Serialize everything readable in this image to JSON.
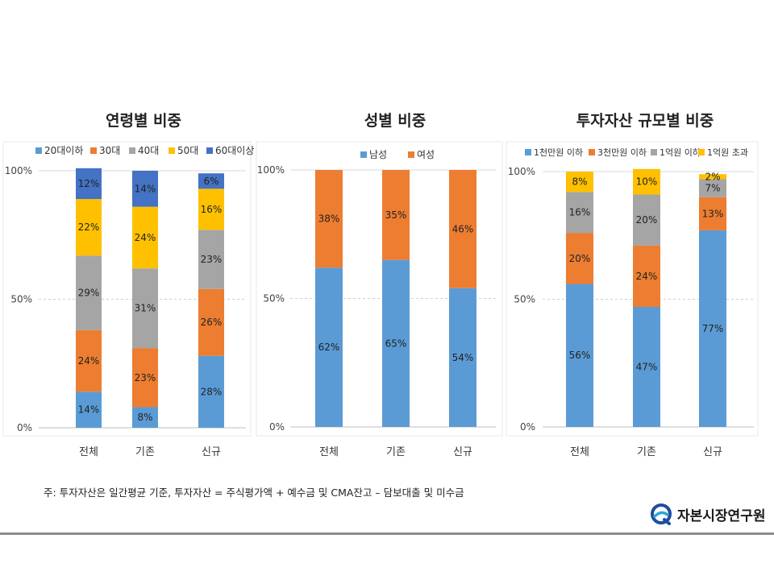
{
  "colors": {
    "blue": "#5b9bd5",
    "orange": "#ed7d31",
    "gray": "#a5a5a5",
    "yellow": "#ffc000",
    "navy": "#4472c4"
  },
  "chart_data": [
    {
      "type": "bar",
      "stacked": true,
      "title": "연령별 비중",
      "categories": [
        "전체",
        "기존",
        "신규"
      ],
      "yticks": [
        "0%",
        "50%",
        "100%"
      ],
      "ylim": [
        0,
        100
      ],
      "grid": true,
      "legend_position": "top",
      "series": [
        {
          "name": "20대이하",
          "color": "#5b9bd5",
          "values": [
            14,
            8,
            28
          ],
          "labels": [
            "14%",
            "8%",
            "28%"
          ]
        },
        {
          "name": "30대",
          "color": "#ed7d31",
          "values": [
            24,
            23,
            26
          ],
          "labels": [
            "24%",
            "23%",
            "26%"
          ]
        },
        {
          "name": "40대",
          "color": "#a5a5a5",
          "values": [
            29,
            31,
            23
          ],
          "labels": [
            "29%",
            "31%",
            "23%"
          ]
        },
        {
          "name": "50대",
          "color": "#ffc000",
          "values": [
            22,
            24,
            16
          ],
          "labels": [
            "22%",
            "24%",
            "16%"
          ]
        },
        {
          "name": "60대이상",
          "color": "#4472c4",
          "values": [
            12,
            14,
            6
          ],
          "labels": [
            "12%",
            "14%",
            "6%"
          ]
        }
      ]
    },
    {
      "type": "bar",
      "stacked": true,
      "title": "성별 비중",
      "categories": [
        "전체",
        "기존",
        "신규"
      ],
      "yticks": [
        "0%",
        "50%",
        "100%"
      ],
      "ylim": [
        0,
        100
      ],
      "grid": true,
      "legend_position": "top",
      "series": [
        {
          "name": "남성",
          "color": "#5b9bd5",
          "values": [
            62,
            65,
            54
          ],
          "labels": [
            "62%",
            "65%",
            "54%"
          ]
        },
        {
          "name": "여성",
          "color": "#ed7d31",
          "values": [
            38,
            35,
            46
          ],
          "labels": [
            "38%",
            "35%",
            "46%"
          ]
        }
      ]
    },
    {
      "type": "bar",
      "stacked": true,
      "title": "투자자산 규모별 비중",
      "categories": [
        "전체",
        "기존",
        "신규"
      ],
      "yticks": [
        "0%",
        "50%",
        "100%"
      ],
      "ylim": [
        0,
        100
      ],
      "grid": true,
      "legend_position": "top",
      "series": [
        {
          "name": "1천만원 이하",
          "color": "#5b9bd5",
          "values": [
            56,
            47,
            77
          ],
          "labels": [
            "56%",
            "47%",
            "77%"
          ]
        },
        {
          "name": "3천만원 이하",
          "color": "#ed7d31",
          "values": [
            20,
            24,
            13
          ],
          "labels": [
            "20%",
            "24%",
            "13%"
          ]
        },
        {
          "name": "1억원 이하",
          "color": "#a5a5a5",
          "values": [
            16,
            20,
            7
          ],
          "labels": [
            "16%",
            "20%",
            "7%"
          ]
        },
        {
          "name": "1억원 초과",
          "color": "#ffc000",
          "values": [
            8,
            10,
            2
          ],
          "labels": [
            "8%",
            "10%",
            "2%"
          ]
        }
      ]
    }
  ],
  "footnote": "주: 투자자산은 일간평균 기준, 투자자산 = 주식평가액 + 예수금 및 CMA잔고 – 담보대출 및 미수금",
  "brand": {
    "name": "자본시장연구원",
    "logo_icon": "kcmi-logo-icon"
  }
}
